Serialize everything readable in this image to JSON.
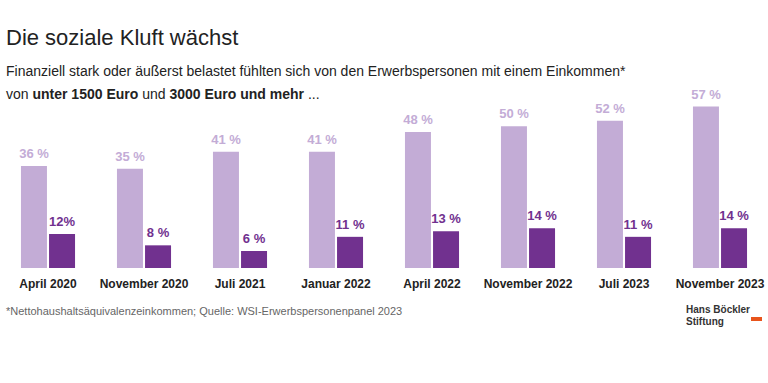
{
  "chart_data": {
    "type": "bar",
    "title": "Die soziale Kluft wächst",
    "subtitle": "Finanziell stark oder äußerst belastet fühlten sich von den Erwerbspersonen mit einem Einkommen*\nvon unter 1500 Euro und 3000 Euro und mehr ...",
    "categories": [
      "April 2020",
      "November 2020",
      "Juli 2021",
      "Januar 2022",
      "April 2022",
      "November 2022",
      "Juli 2023",
      "November 2023"
    ],
    "series": [
      {
        "name": "unter 1500 Euro",
        "color": "#c3acd6",
        "values": [
          36,
          35,
          41,
          41,
          48,
          50,
          52,
          57
        ],
        "value_labels": [
          "36 %",
          "35 %",
          "41 %",
          "41 %",
          "48 %",
          "50 %",
          "52 %",
          "57 %"
        ]
      },
      {
        "name": "3000 Euro und mehr",
        "color": "#71318f",
        "values": [
          12,
          8,
          6,
          11,
          13,
          14,
          11,
          14
        ],
        "value_labels": [
          "12%",
          "8 %",
          "6 %",
          "11 %",
          "13 %",
          "14 %",
          "11 %",
          "14 %"
        ]
      }
    ],
    "ylim": [
      0,
      60
    ],
    "grid": false,
    "tick_labels": "x",
    "data_labels": true,
    "annotations": [
      "*Nettohaushaltsäquivalenzeinkommen; Quelle: WSI-Erwerbspersonenpanel 2023",
      "Hans Böckler\nStiftung"
    ]
  }
}
